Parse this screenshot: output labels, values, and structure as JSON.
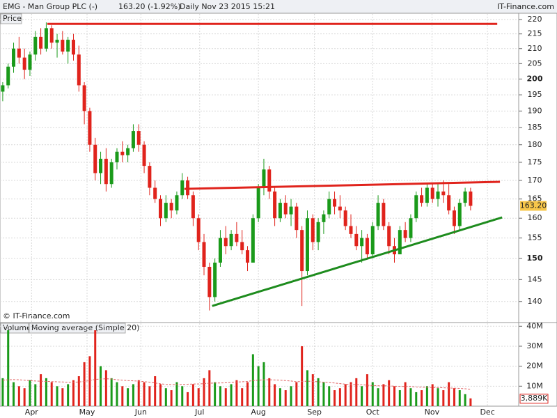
{
  "header": {
    "symbol": "EMG - Man Group PLC (-)",
    "quote": "163.20 (-1.92%)",
    "period": "Daily  Nov 23 2015 15:21",
    "brand": "IT-Finance.com"
  },
  "chart_data": [
    {
      "type": "candlestick",
      "title": "Price",
      "credit": "© IT-Finance.com",
      "log_scale": true,
      "grid": true,
      "up_color": "#1a9a1a",
      "down_color": "#e0231c",
      "xlim": [
        -0.5,
        101.5
      ],
      "xticks": [
        {
          "value": 5.3,
          "label": "Apr"
        },
        {
          "value": 15.5,
          "label": "May"
        },
        {
          "value": 25.4,
          "label": "Jun"
        },
        {
          "value": 36.2,
          "label": "Jul"
        },
        {
          "value": 47,
          "label": "Aug"
        },
        {
          "value": 57.3,
          "label": "Sep"
        },
        {
          "value": 68,
          "label": "Oct"
        },
        {
          "value": 78.9,
          "label": "Nov"
        },
        {
          "value": 89.1,
          "label": "Dec"
        }
      ],
      "ylim": [
        135.5,
        222
      ],
      "yticks": [
        140,
        145,
        150,
        155,
        160,
        165,
        170,
        175,
        180,
        185,
        190,
        195,
        200,
        205,
        210,
        215,
        220
      ],
      "series": [
        {
          "name": "EMG",
          "last_label": "163.20",
          "values": [
            [
              196,
              199,
              193,
              198
            ],
            [
              198,
              205,
              197,
              204
            ],
            [
              204,
              212,
              202,
              210
            ],
            [
              210,
              214,
              205,
              207
            ],
            [
              207,
              210,
              200,
              203
            ],
            [
              203,
              209,
              201,
              208
            ],
            [
              208,
              216,
              206,
              214
            ],
            [
              214,
              217,
              208,
              210
            ],
            [
              210,
              219,
              209,
              217
            ],
            [
              217,
              218,
              210,
              212
            ],
            [
              212,
              215,
              207,
              213
            ],
            [
              213,
              216,
              208,
              209
            ],
            [
              209,
              214,
              205,
              213
            ],
            [
              213,
              215,
              206,
              208
            ],
            [
              208,
              211,
              196,
              198
            ],
            [
              198,
              199,
              186,
              190
            ],
            [
              190,
              191,
              178,
              180
            ],
            [
              180,
              182,
              170,
              172
            ],
            [
              172,
              178,
              169,
              176
            ],
            [
              176,
              179,
              167,
              169
            ],
            [
              169,
              176,
              168,
              175
            ],
            [
              175,
              179,
              173,
              178
            ],
            [
              178,
              181,
              175,
              177
            ],
            [
              177,
              180,
              175,
              179
            ],
            [
              179,
              186,
              178,
              184
            ],
            [
              184,
              186,
              178,
              180
            ],
            [
              180,
              181,
              172,
              174
            ],
            [
              174,
              175,
              166,
              168
            ],
            [
              168,
              170,
              164,
              165
            ],
            [
              165,
              166,
              158,
              160
            ],
            [
              160,
              166,
              159,
              164
            ],
            [
              164,
              165,
              160,
              162
            ],
            [
              162,
              167,
              161,
              166
            ],
            [
              166,
              172,
              165,
              170
            ],
            [
              170,
              171,
              165,
              166
            ],
            [
              166,
              167,
              158,
              160
            ],
            [
              160,
              161,
              152,
              154
            ],
            [
              154,
              156,
              146,
              148
            ],
            [
              148,
              149,
              138,
              141
            ],
            [
              141,
              150,
              140,
              149
            ],
            [
              149,
              157,
              148,
              155
            ],
            [
              155,
              158,
              151,
              153
            ],
            [
              153,
              157,
              152,
              156
            ],
            [
              156,
              159,
              153,
              154
            ],
            [
              154,
              157,
              151,
              152
            ],
            [
              152,
              153,
              147,
              149
            ],
            [
              149,
              161,
              149,
              160
            ],
            [
              160,
              169,
              159,
              168
            ],
            [
              168,
              176,
              166,
              173
            ],
            [
              173,
              174,
              165,
              167
            ],
            [
              167,
              168,
              158,
              160
            ],
            [
              160,
              165,
              159,
              164
            ],
            [
              164,
              166,
              160,
              161
            ],
            [
              161,
              165,
              158,
              163
            ],
            [
              163,
              164,
              155,
              157
            ],
            [
              157,
              158,
              139,
              147
            ],
            [
              147,
              162,
              146,
              160
            ],
            [
              160,
              161,
              152,
              154
            ],
            [
              154,
              160,
              152,
              159
            ],
            [
              159,
              162,
              156,
              161
            ],
            [
              161,
              167,
              160,
              165
            ],
            [
              165,
              167,
              161,
              163
            ],
            [
              163,
              166,
              160,
              162
            ],
            [
              162,
              163,
              157,
              158
            ],
            [
              158,
              161,
              155,
              156
            ],
            [
              156,
              158,
              152,
              153
            ],
            [
              153,
              157,
              149,
              155
            ],
            [
              155,
              156,
              150,
              151
            ],
            [
              151,
              159,
              150,
              158
            ],
            [
              158,
              166,
              157,
              164
            ],
            [
              164,
              165,
              157,
              158
            ],
            [
              158,
              159,
              151,
              153
            ],
            [
              153,
              155,
              149,
              151
            ],
            [
              151,
              158,
              151,
              157
            ],
            [
              157,
              159,
              154,
              155
            ],
            [
              155,
              161,
              154,
              160
            ],
            [
              160,
              167,
              159,
              166
            ],
            [
              166,
              168,
              163,
              164
            ],
            [
              164,
              169,
              163,
              168
            ],
            [
              168,
              169,
              164,
              165
            ],
            [
              165,
              169,
              163,
              167
            ],
            [
              167,
              170,
              164,
              166
            ],
            [
              166,
              169,
              161,
              162
            ],
            [
              162,
              163,
              156,
              158
            ],
            [
              158,
              165,
              157,
              164
            ],
            [
              164,
              168,
              163,
              167
            ],
            [
              167,
              168,
              162,
              163.2
            ]
          ]
        }
      ],
      "trendlines": [
        {
          "color": "#e0231c",
          "x": [
            8.2,
            90.9
          ],
          "y": [
            218.5,
            218.5
          ]
        },
        {
          "color": "#e0231c",
          "x": [
            33.4,
            91.4
          ],
          "y": [
            167.7,
            169.6
          ]
        },
        {
          "color": "#1e8c1e",
          "x": [
            38.5,
            91.8
          ],
          "y": [
            139,
            160.2
          ]
        }
      ]
    },
    {
      "type": "bar",
      "title": "Volume",
      "subtitle": "Moving average (Simple 20)",
      "grid": true,
      "ylim": [
        0,
        41.5
      ],
      "yticks": [
        {
          "value": 10,
          "label": "10M"
        },
        {
          "value": 20,
          "label": "20M"
        },
        {
          "value": 30,
          "label": "30M"
        },
        {
          "value": 40,
          "label": "40M"
        }
      ],
      "series": [
        {
          "name": "Volume",
          "last_label": "3,889K",
          "values": [
            14,
            38,
            12,
            10,
            9,
            13,
            11,
            16,
            14,
            12,
            10,
            9,
            11,
            13,
            15,
            22,
            25,
            38,
            20,
            18,
            14,
            12,
            10,
            9,
            11,
            13,
            12,
            10,
            15,
            11,
            9,
            8,
            12,
            10,
            7,
            11,
            9,
            14,
            18,
            12,
            10,
            9,
            11,
            13,
            9,
            12,
            26,
            20,
            22,
            14,
            11,
            9,
            8,
            10,
            12,
            30,
            18,
            16,
            14,
            12,
            10,
            8,
            9,
            11,
            12,
            14,
            10,
            16,
            12,
            9,
            11,
            13,
            10,
            8,
            12,
            9,
            7,
            8,
            10,
            11,
            9,
            8,
            12,
            9,
            8,
            6,
            3.889
          ]
        },
        {
          "name": "Moving average (Simple 20)",
          "color": "#e06060",
          "values": [
            13,
            13.2,
            13.3,
            13.2,
            13,
            12.8,
            12.6,
            12.5,
            12.4,
            12.3,
            12.2,
            12.1,
            12,
            12,
            12.1,
            12.4,
            12.8,
            13.4,
            13.6,
            13.7,
            13.6,
            13.2,
            13,
            12.8,
            12.7,
            12.5,
            12.3,
            12,
            11.6,
            11.2,
            10.9,
            10.8,
            10.8,
            10.9,
            11,
            11.1,
            11.1,
            11.3,
            11.5,
            11.6,
            11.6,
            11.7,
            11.9,
            12.1,
            12.2,
            12.4,
            12.8,
            13,
            13.2,
            13.2,
            13.1,
            13,
            12.8,
            12.6,
            12.2,
            12.4,
            12.5,
            12.4,
            12.2,
            12,
            11.8,
            11.6,
            11.3,
            11,
            10.8,
            10.8,
            10.7,
            10.5,
            10.3,
            10.2,
            10.2,
            10.1,
            10,
            9.9,
            9.9,
            9.8,
            9.6,
            9.5,
            9.4,
            9.3,
            9.3,
            9.2,
            9.1,
            9,
            8.9,
            8.7,
            8.4
          ]
        }
      ]
    }
  ]
}
